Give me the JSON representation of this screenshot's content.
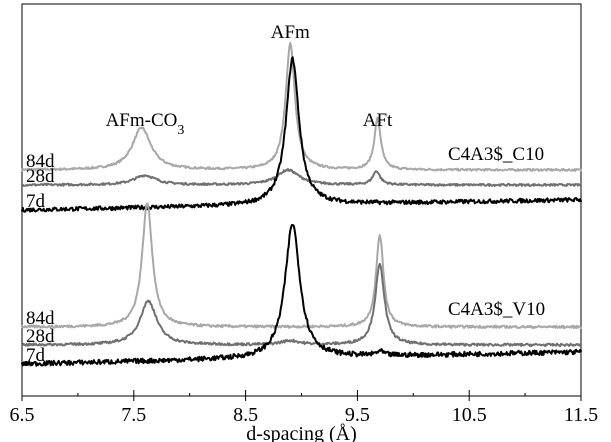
{
  "chart_data": {
    "type": "line",
    "title": "",
    "xlabel": "d-spacing (Å)",
    "ylabel": "",
    "xlim": [
      6.5,
      11.5
    ],
    "x_ticks": [
      6.5,
      7.5,
      8.5,
      9.5,
      10.5,
      11.5
    ],
    "x_tick_labels": [
      "6.5",
      "7.5",
      "8.5",
      "9.5",
      "10.5",
      "11.5"
    ],
    "grid": false,
    "legend": "none",
    "peak_labels": [
      {
        "text": "AFm-CO",
        "subscript": "3",
        "x": 7.6
      },
      {
        "text": "AFm",
        "x": 8.9
      },
      {
        "text": "AFt",
        "x": 9.68
      }
    ],
    "colors": {
      "7d": "#000000",
      "28d": "#707070",
      "84d": "#a8a8a8"
    },
    "panels": [
      {
        "sample": "C4A3$_C10",
        "series": [
          {
            "name": "84d",
            "baseline": 1.0,
            "peaks": [
              {
                "center": 7.57,
                "height": 0.62,
                "width": 0.1
              },
              {
                "center": 8.9,
                "height": 1.85,
                "width": 0.05
              },
              {
                "center": 9.68,
                "height": 0.75,
                "width": 0.035
              }
            ]
          },
          {
            "name": "28d",
            "baseline": 0.86,
            "peaks": [
              {
                "center": 7.6,
                "height": 0.14,
                "width": 0.12
              },
              {
                "center": 8.88,
                "height": 0.22,
                "width": 0.12
              },
              {
                "center": 9.67,
                "height": 0.2,
                "width": 0.04
              }
            ]
          },
          {
            "name": "7d",
            "baseline": 0.0,
            "peaks": [
              {
                "center": 8.92,
                "height": 2.15,
                "width": 0.07
              }
            ]
          }
        ]
      },
      {
        "sample": "C4A3$_V10",
        "series": [
          {
            "name": "84d",
            "baseline": 1.05,
            "peaks": [
              {
                "center": 7.62,
                "height": 1.55,
                "width": 0.055
              },
              {
                "center": 9.7,
                "height": 1.15,
                "width": 0.04
              }
            ]
          },
          {
            "name": "28d",
            "baseline": 0.82,
            "peaks": [
              {
                "center": 7.63,
                "height": 0.55,
                "width": 0.09
              },
              {
                "center": 8.9,
                "height": 0.05,
                "width": 0.1
              },
              {
                "center": 9.7,
                "height": 1.0,
                "width": 0.05
              }
            ]
          },
          {
            "name": "7d",
            "baseline": 0.0,
            "peaks": [
              {
                "center": 8.92,
                "height": 1.68,
                "width": 0.08
              },
              {
                "center": 9.7,
                "height": 0.05,
                "width": 0.04
              }
            ]
          }
        ]
      }
    ]
  }
}
